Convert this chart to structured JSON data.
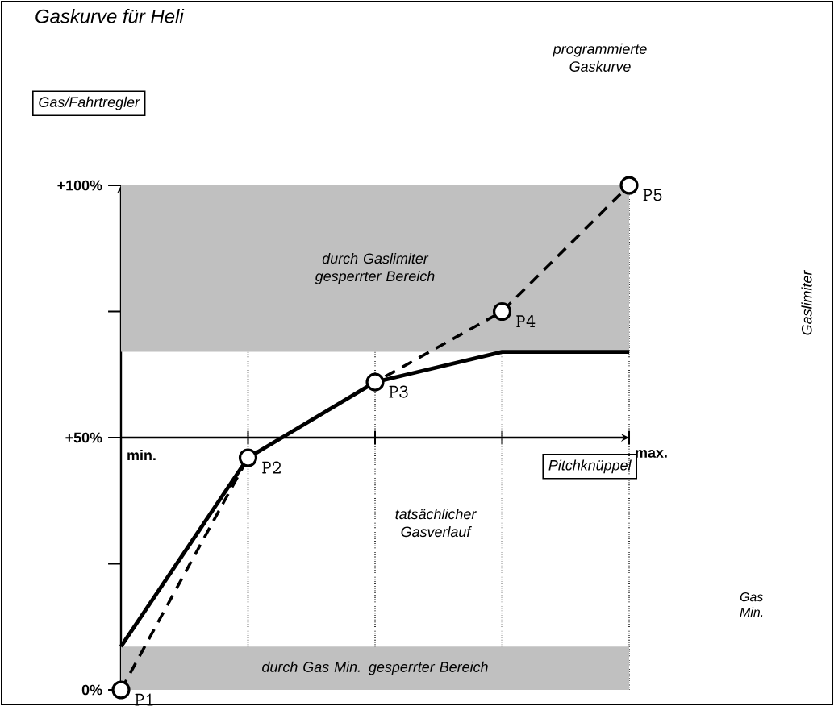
{
  "chart_data": {
    "type": "line",
    "title": "Gaskurve für Heli",
    "xlabel": "Pitchknüppel",
    "ylabel": "Gas/Fahrtregler",
    "categories": [
      "min.",
      null,
      null,
      null,
      "max."
    ],
    "ylim": [
      0,
      100
    ],
    "yticks": [
      {
        "value": 0,
        "label": "0%"
      },
      {
        "value": 25,
        "label": null
      },
      {
        "value": 50,
        "label": "+50%"
      },
      {
        "value": 75,
        "label": null
      },
      {
        "value": 100,
        "label": "+100%"
      }
    ],
    "grid": "x",
    "series": [
      {
        "color": "#000000",
        "values": [
          0,
          46,
          61,
          75,
          100
        ],
        "value_labels": [
          "P1",
          "P2",
          "P3",
          "P4",
          "P5"
        ],
        "line_style": "dashed",
        "marker": "circle"
      },
      {
        "color": "#000000",
        "values": [
          8.6,
          46,
          61,
          67,
          67
        ],
        "line_style": "solid",
        "marker": "none"
      }
    ],
    "bands": [
      {
        "axis": "y",
        "from": 67,
        "to": 100,
        "label": "durch Gaslimiter gesperrter Bereich",
        "color": "#c0c0c0"
      },
      {
        "axis": "y",
        "from": 0,
        "to": 8.6,
        "label": "durch Gas Min. gesperrter Bereich",
        "color": "#c0c0c0"
      }
    ],
    "annotations": [
      "programmierte Gaskurve",
      "tatsächlicher Gasverlauf",
      "Gas Min.",
      "Gaslimiter"
    ]
  }
}
